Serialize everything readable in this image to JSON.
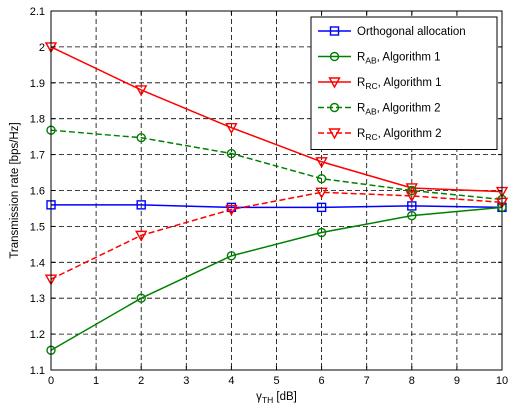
{
  "chart_data": {
    "type": "line",
    "title": "",
    "xlabel": {
      "main": "γ",
      "sub": "TH",
      "unit": " [dB]"
    },
    "ylabel": "Transmission rate [bps/Hz]",
    "xlim": [
      0,
      10
    ],
    "ylim": [
      1.1,
      2.1
    ],
    "xticks": [
      0,
      1,
      2,
      3,
      4,
      5,
      6,
      7,
      8,
      9,
      10
    ],
    "yticks": [
      1.1,
      1.2,
      1.3,
      1.4,
      1.5,
      1.6,
      1.7,
      1.8,
      1.9,
      2.0,
      2.1
    ],
    "ytick_labels": [
      "1.1",
      "1.2",
      "1.3",
      "1.4",
      "1.5",
      "1.6",
      "1.7",
      "1.8",
      "1.9",
      "2",
      "2.1"
    ],
    "grid": true,
    "grid_style": "dashed",
    "legend_position": "top-right",
    "x": [
      0,
      2,
      4,
      6,
      8,
      10
    ],
    "series": [
      {
        "name": "Orthogonal allocation",
        "legend": {
          "main": "Orthogonal allocation"
        },
        "values": [
          1.56,
          1.56,
          1.553,
          1.553,
          1.557,
          1.553
        ],
        "color": "#0000ff",
        "dash": "solid",
        "marker": "square"
      },
      {
        "name": "R_AB, Algorithm 1",
        "legend": {
          "main": "R",
          "sub": "AB",
          "rest": ", Algorithm 1"
        },
        "values": [
          1.155,
          1.3,
          1.418,
          1.483,
          1.53,
          1.553
        ],
        "color": "#008000",
        "dash": "solid",
        "marker": "circle"
      },
      {
        "name": "R_RC, Algorithm 1",
        "legend": {
          "main": "R",
          "sub": "RC",
          "rest": ", Algorithm 1"
        },
        "values": [
          2.0,
          1.88,
          1.775,
          1.68,
          1.607,
          1.597
        ],
        "color": "#ff0000",
        "dash": "solid",
        "marker": "triangle-down"
      },
      {
        "name": "R_AB, Algorithm 2",
        "legend": {
          "main": "R",
          "sub": "AB",
          "rest": ", Algorithm 2"
        },
        "values": [
          1.768,
          1.747,
          1.703,
          1.633,
          1.6,
          1.575
        ],
        "color": "#008000",
        "dash": "dashed",
        "marker": "circle"
      },
      {
        "name": "R_RC, Algorithm 2",
        "legend": {
          "main": "R",
          "sub": "RC",
          "rest": ", Algorithm 2"
        },
        "values": [
          1.353,
          1.475,
          1.547,
          1.595,
          1.585,
          1.567
        ],
        "color": "#ff0000",
        "dash": "dashed",
        "marker": "triangle-down"
      }
    ]
  }
}
